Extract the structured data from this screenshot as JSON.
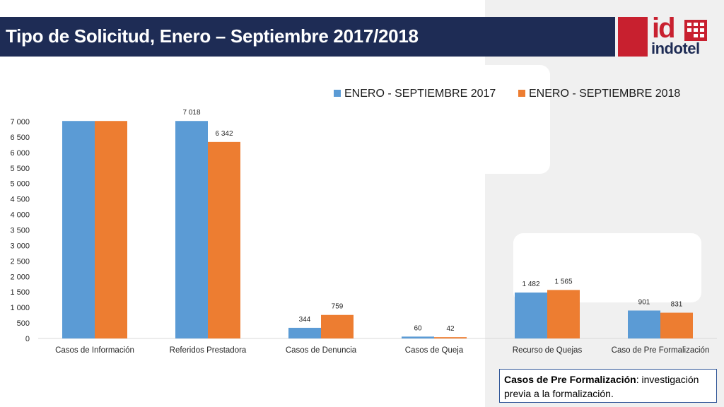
{
  "header": {
    "title": "Tipo de Solicitud, Enero – Septiembre 2017/2018",
    "logo_id": "id",
    "logo_name": "indotel"
  },
  "colors": {
    "navy": "#1e2c55",
    "brand_red": "#c8202f",
    "series_2017": "#5b9bd5",
    "series_2018": "#ed7d31"
  },
  "chart_data": {
    "type": "bar",
    "categories": [
      "Casos de Información",
      "Referidos Prestadora",
      "Casos de Denuncia",
      "Casos de Queja",
      "Recurso de Quejas",
      "Caso de Pre Formalización"
    ],
    "series": [
      {
        "name": "ENERO - SEPTIEMBRE 2017",
        "values": [
          7018,
          7018,
          344,
          60,
          1482,
          901
        ],
        "labels": [
          "",
          "7 018",
          "344",
          "60",
          "1 482",
          "901"
        ]
      },
      {
        "name": "ENERO - SEPTIEMBRE 2018",
        "values": [
          7018,
          6342,
          759,
          42,
          1565,
          831
        ],
        "labels": [
          "",
          "6 342",
          "759",
          "42",
          "1 565",
          "831"
        ]
      }
    ],
    "ylim": [
      0,
      7000
    ],
    "yticks": [
      0,
      500,
      1000,
      1500,
      2000,
      2500,
      3000,
      3500,
      4000,
      4500,
      5000,
      5500,
      6000,
      6500,
      7000
    ],
    "ytick_labels": [
      "0",
      "500",
      "1 000",
      "1 500",
      "2 000",
      "2 500",
      "3 000",
      "3 500",
      "4 000",
      "4 500",
      "5 000",
      "5 500",
      "6 000",
      "6 500",
      "7 000"
    ],
    "legend_position": "top-right",
    "grid": false
  },
  "note": {
    "bold": "Casos de Pre Formalización",
    "text": ": investigación previa a la formalización."
  }
}
